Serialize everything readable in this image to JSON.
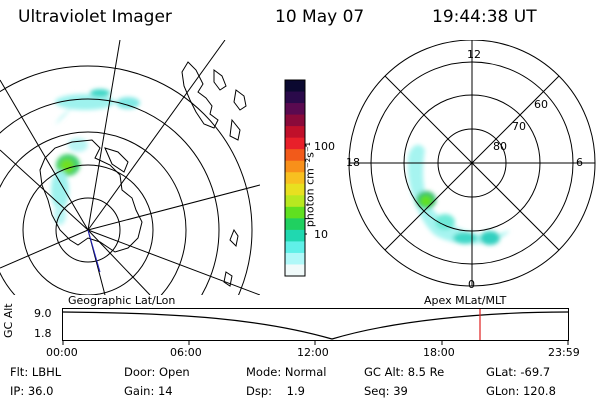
{
  "header": {
    "title": "Ultraviolet Imager",
    "date": "10 May 07",
    "time": "19:44:38 UT"
  },
  "colorbar": {
    "unit_label": "photon cm⁻²s⁻¹",
    "ticks": [
      "100",
      "10"
    ],
    "colors": [
      "#0b0930",
      "#2a0a4a",
      "#5a0a50",
      "#8a0a3a",
      "#c0102a",
      "#e8202a",
      "#f25a1a",
      "#f8901a",
      "#f8c020",
      "#e8e020",
      "#b8e820",
      "#60e020",
      "#20d060",
      "#20d8b0",
      "#60f0e8",
      "#b0f8f8",
      "#f0fafa"
    ]
  },
  "left_map": {
    "caption": "Geographic Lat/Lon"
  },
  "right_map": {
    "caption": "Apex MLat/MLT",
    "mlt_labels": {
      "top": "12",
      "left": "18",
      "right": "6",
      "bottom": "0"
    },
    "lat_labels": [
      "60",
      "70",
      "80"
    ]
  },
  "altitude_plot": {
    "ylabel": "GC Alt",
    "yticks": [
      "9.0",
      "1.8"
    ],
    "xticks": [
      "00:00",
      "06:00",
      "12:00",
      "18:00",
      "23:59"
    ]
  },
  "info": {
    "row1": [
      {
        "label": "Flt:",
        "value": "LBHL"
      },
      {
        "label": "Door:",
        "value": "Open"
      },
      {
        "label": "Mode:",
        "value": "Normal"
      },
      {
        "label": "GC Alt:",
        "value": "8.5 Re"
      },
      {
        "label": "GLat:",
        "value": "-69.7"
      }
    ],
    "row2": [
      {
        "label": "IP:",
        "value": "36.0"
      },
      {
        "label": "Gain:",
        "value": "14"
      },
      {
        "label": "Dsp:",
        "value": "1.9"
      },
      {
        "label": "Seq:",
        "value": "39"
      },
      {
        "label": "GLon:",
        "value": "120.8"
      }
    ]
  }
}
